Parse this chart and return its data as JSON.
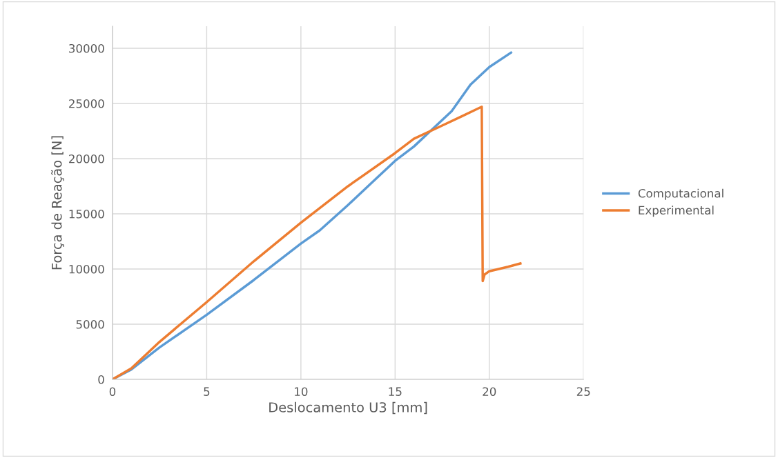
{
  "chart_data": {
    "type": "line",
    "xlabel": "Deslocamento U3 [mm]",
    "ylabel": "Força de Reação [N]",
    "xlim": [
      0,
      25
    ],
    "xticks": [
      0,
      5,
      10,
      15,
      20,
      25
    ],
    "ylim": [
      0,
      32000
    ],
    "yticks": [
      0,
      5000,
      10000,
      15000,
      20000,
      25000,
      30000
    ],
    "grid": true,
    "legend": "right",
    "marker": "none",
    "line_style": "solid",
    "series": [
      {
        "name": "Computacional",
        "color": "#5b9bd5",
        "x": [
          0,
          1,
          2.5,
          5,
          7.5,
          10,
          11,
          12.5,
          14,
          15,
          16,
          17,
          17.5,
          18,
          19,
          20,
          21.15
        ],
        "values": [
          0,
          900,
          2900,
          5850,
          9000,
          12300,
          13500,
          15800,
          18200,
          19800,
          21100,
          22700,
          23500,
          24300,
          26700,
          28300,
          29600
        ]
      },
      {
        "name": "Experimental",
        "color": "#ed7d31",
        "x": [
          0,
          1,
          2.5,
          5,
          7.5,
          10,
          12.5,
          15,
          16,
          17.5,
          18.5,
          19.6,
          19.65,
          19.75,
          20,
          21,
          21.65
        ],
        "values": [
          0,
          1000,
          3400,
          7000,
          10700,
          14200,
          17500,
          20500,
          21800,
          23000,
          23800,
          24700,
          8900,
          9500,
          9800,
          10200,
          10500
        ]
      }
    ]
  }
}
